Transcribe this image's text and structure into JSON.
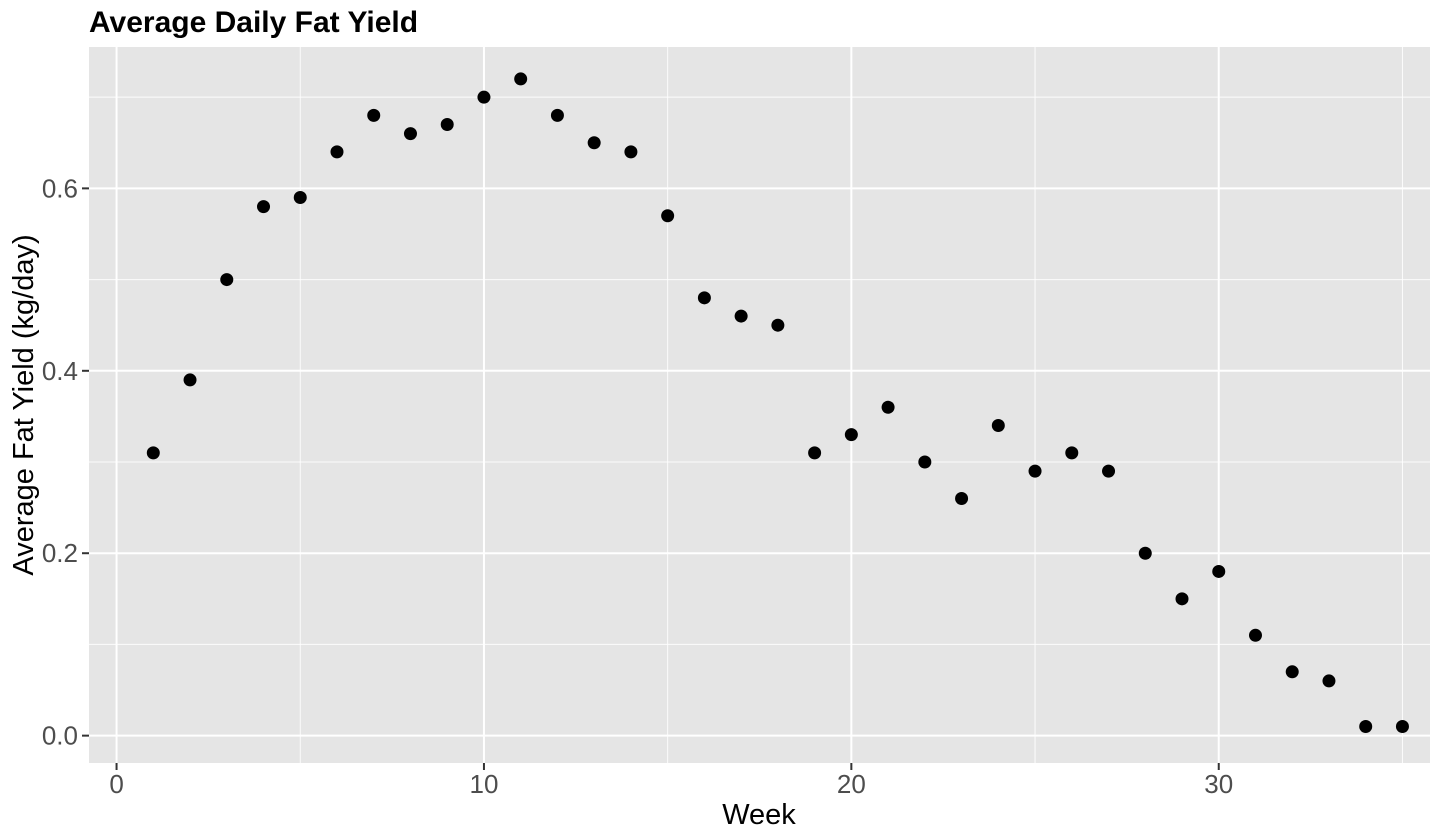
{
  "chart_data": {
    "type": "scatter",
    "title": "Average Daily Fat Yield",
    "xlabel": "Week",
    "ylabel": "Average Fat Yield (kg/day)",
    "xlim": [
      -0.75,
      35.75
    ],
    "ylim": [
      -0.03,
      0.755
    ],
    "x_ticks": [
      0,
      10,
      20,
      30
    ],
    "x_tick_labels": [
      "0",
      "10",
      "20",
      "30"
    ],
    "x_minor_ticks": [
      5,
      15,
      25,
      35
    ],
    "y_ticks": [
      0.0,
      0.2,
      0.4,
      0.6
    ],
    "y_tick_labels": [
      "0.0",
      "0.2",
      "0.4",
      "0.6"
    ],
    "y_minor_ticks": [
      0.1,
      0.3,
      0.5,
      0.7
    ],
    "grid": true,
    "panel_color": "#e5e5e5",
    "grid_color": "#ffffff",
    "point_color": "#000000",
    "series": [
      {
        "x": [
          1,
          2,
          3,
          4,
          5,
          6,
          7,
          8,
          9,
          10,
          11,
          12,
          13,
          14,
          15,
          16,
          17,
          18,
          19,
          20,
          21,
          22,
          23,
          24,
          25,
          26,
          27,
          28,
          29,
          30,
          31,
          32,
          33,
          34,
          35
        ],
        "y": [
          0.31,
          0.39,
          0.5,
          0.58,
          0.59,
          0.64,
          0.68,
          0.66,
          0.67,
          0.7,
          0.72,
          0.68,
          0.65,
          0.64,
          0.57,
          0.48,
          0.46,
          0.45,
          0.31,
          0.33,
          0.36,
          0.3,
          0.26,
          0.34,
          0.29,
          0.31,
          0.29,
          0.2,
          0.15,
          0.18,
          0.11,
          0.07,
          0.06,
          0.01,
          0.01
        ]
      }
    ]
  }
}
